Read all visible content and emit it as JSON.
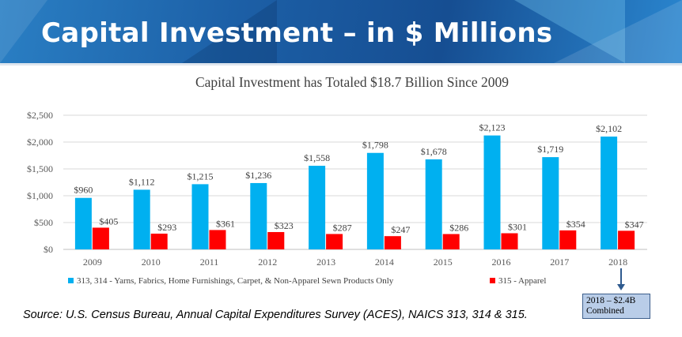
{
  "header": {
    "title": "Capital Investment – in $ Millions"
  },
  "chart_data": {
    "type": "bar",
    "title": "Capital Investment has Totaled $18.7 Billion Since 2009",
    "categories": [
      "2009",
      "2010",
      "2011",
      "2012",
      "2013",
      "2014",
      "2015",
      "2016",
      "2017",
      "2018"
    ],
    "series": [
      {
        "name": "313, 314 - Yarns, Fabrics, Home Furnishings, Carpet, & Non-Apparel Sewn Products Only",
        "color": "#00b0f0",
        "values": [
          960,
          1112,
          1215,
          1236,
          1558,
          1798,
          1678,
          2123,
          1719,
          2102
        ],
        "labels": [
          "$960",
          "$1,112",
          "$1,215",
          "$1,236",
          "$1,558",
          "$1,798",
          "$1,678",
          "$2,123",
          "$1,719",
          "$2,102"
        ]
      },
      {
        "name": "315 - Apparel",
        "color": "#ff0000",
        "values": [
          405,
          293,
          361,
          323,
          287,
          247,
          286,
          301,
          354,
          347
        ],
        "labels": [
          "$405",
          "$293",
          "$361",
          "$323",
          "$287",
          "$247",
          "$286",
          "$301",
          "$354",
          "$347"
        ]
      }
    ],
    "ylim": [
      0,
      2500
    ],
    "yticks": [
      0,
      500,
      1000,
      1500,
      2000,
      2500
    ],
    "ytick_labels": [
      "$0",
      "$500",
      "$1,000",
      "$1,500",
      "$2,000",
      "$2,500"
    ],
    "grid": true,
    "legend_position": "bottom",
    "annotation": {
      "line1": "2018 – $2.4B",
      "line2": "Combined"
    }
  },
  "source_note": "Source: U.S. Census Bureau, Annual Capital Expenditures Survey (ACES), NAICS 313, 314 & 315."
}
